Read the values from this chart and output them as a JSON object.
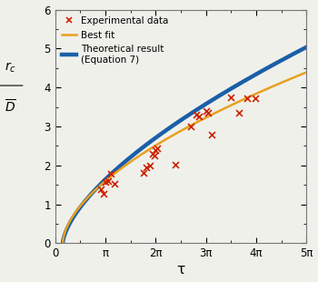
{
  "title": "",
  "xlabel": "τ",
  "ylabel_top": "$r_c$",
  "ylabel_bottom": "$D$",
  "xlim": [
    0,
    15.708
  ],
  "ylim": [
    0,
    6
  ],
  "xticks": [
    0,
    3.14159,
    6.28318,
    9.42478,
    12.56637,
    15.70796
  ],
  "xtick_labels": [
    "0",
    "π",
    "2π",
    "3π",
    "4π",
    "5π"
  ],
  "yticks": [
    0,
    1,
    2,
    3,
    4,
    5,
    6
  ],
  "background_color": "#f0f0eb",
  "theory_color": "#1a5fa8",
  "fit_color": "#e8a020",
  "exp_color": "#cc2200",
  "theory_lw": 3.2,
  "fit_lw": 1.8,
  "theory_label": "Theoretical result\n(Equation 7)",
  "fit_label": "Best fit",
  "exp_label": "Experimental data",
  "exp_x": [
    2.85,
    3.0,
    3.14,
    3.3,
    3.5,
    3.7,
    5.5,
    5.7,
    5.9,
    6.1,
    6.2,
    6.28,
    6.35,
    7.5,
    8.5,
    8.8,
    9.0,
    9.42,
    9.55,
    9.8,
    11.0,
    11.5,
    12.0,
    12.5
  ],
  "exp_y": [
    1.38,
    1.27,
    1.57,
    1.6,
    1.78,
    1.52,
    1.82,
    1.95,
    2.0,
    2.3,
    2.25,
    2.4,
    2.45,
    2.02,
    3.0,
    3.3,
    3.25,
    3.4,
    3.35,
    2.78,
    3.75,
    3.35,
    3.72,
    3.73
  ],
  "theory_tau_start": 0.47,
  "fit_tau_start": 0.47,
  "theory_A": 1.56,
  "theory_n": 0.5,
  "fit_A": 1.12,
  "fit_n": 0.5
}
